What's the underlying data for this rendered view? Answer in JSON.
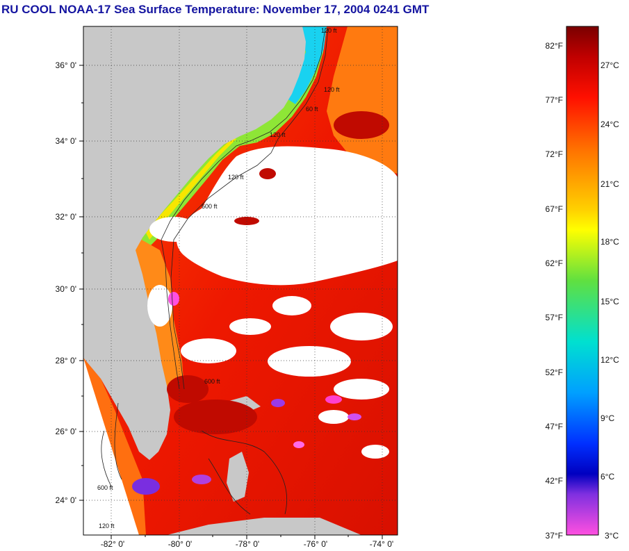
{
  "title": "RU COOL  NOAA-17  Sea Surface Temperature:  November 17, 2004 0241 GMT",
  "map": {
    "lat_labels": [
      "36° 0'",
      "34° 0'",
      "32° 0'",
      "30° 0'",
      "28° 0'",
      "26° 0'",
      "24° 0'"
    ],
    "lon_labels": [
      "-82° 0'",
      "-80° 0'",
      "-78° 0'",
      "-76° 0'",
      "-74° 0'"
    ],
    "contour_labels": [
      "120 ft",
      "120 ft",
      "120 ft",
      "60 ft",
      "120 ft",
      "600 ft",
      "600 ft",
      "600 ft",
      "120 ft"
    ],
    "land_color": "#c8c8c8",
    "cloud_color": "#ffffff"
  },
  "colorbar": {
    "fahrenheit_labels": [
      "82°F",
      "77°F",
      "72°F",
      "67°F",
      "62°F",
      "57°F",
      "52°F",
      "47°F",
      "42°F",
      "37°F"
    ],
    "celsius_labels": [
      "27°C",
      "24°C",
      "21°C",
      "18°C",
      "15°C",
      "12°C",
      "9°C",
      "6°C",
      "3°C"
    ]
  }
}
